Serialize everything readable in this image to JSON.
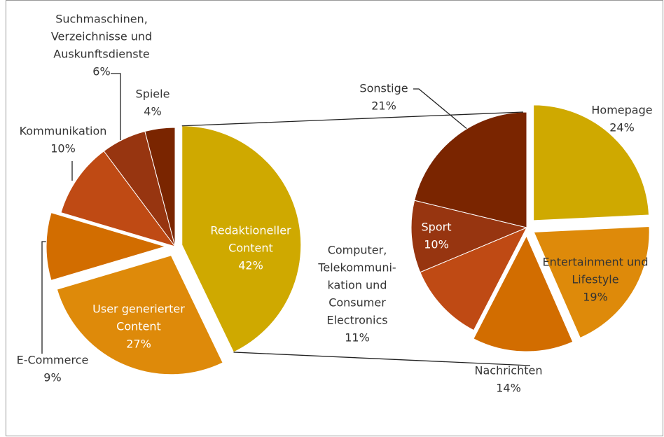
{
  "chart_data": [
    {
      "type": "pie",
      "categories": [
        [
          "Redaktioneller",
          "Content"
        ],
        [
          "User generierter",
          "Content"
        ],
        [
          "E-Commerce"
        ],
        [
          "Kommunikation"
        ],
        [
          "Suchmaschinen,",
          "Verzeichnisse und",
          "Auskunftsdienste"
        ],
        [
          "Spiele"
        ]
      ],
      "values": [
        42,
        27,
        9,
        10,
        6,
        4
      ],
      "value_labels": [
        "42%",
        "27%",
        "9%",
        "10%",
        "6%",
        "4%"
      ],
      "colors": [
        "#cfa900",
        "#de8a0a",
        "#d26d00",
        "#bf4a14",
        "#973510",
        "#7a2500"
      ]
    },
    {
      "type": "pie",
      "categories": [
        [
          "Homepage"
        ],
        [
          "Entertainment und",
          "Lifestyle"
        ],
        [
          "Nachrichten"
        ],
        [
          "Computer,",
          "Telekommuni-",
          "kation und",
          "Consumer",
          "Electronics"
        ],
        [
          "Sport"
        ],
        [
          "Sonstige"
        ]
      ],
      "values": [
        24,
        19,
        14,
        11,
        10,
        21
      ],
      "value_labels": [
        "24%",
        "19%",
        "14%",
        "11%",
        "10%",
        "21%"
      ],
      "colors": [
        "#cfa900",
        "#de8a0a",
        "#d26d00",
        "#bf4a14",
        "#973510",
        "#7a2500"
      ]
    }
  ]
}
